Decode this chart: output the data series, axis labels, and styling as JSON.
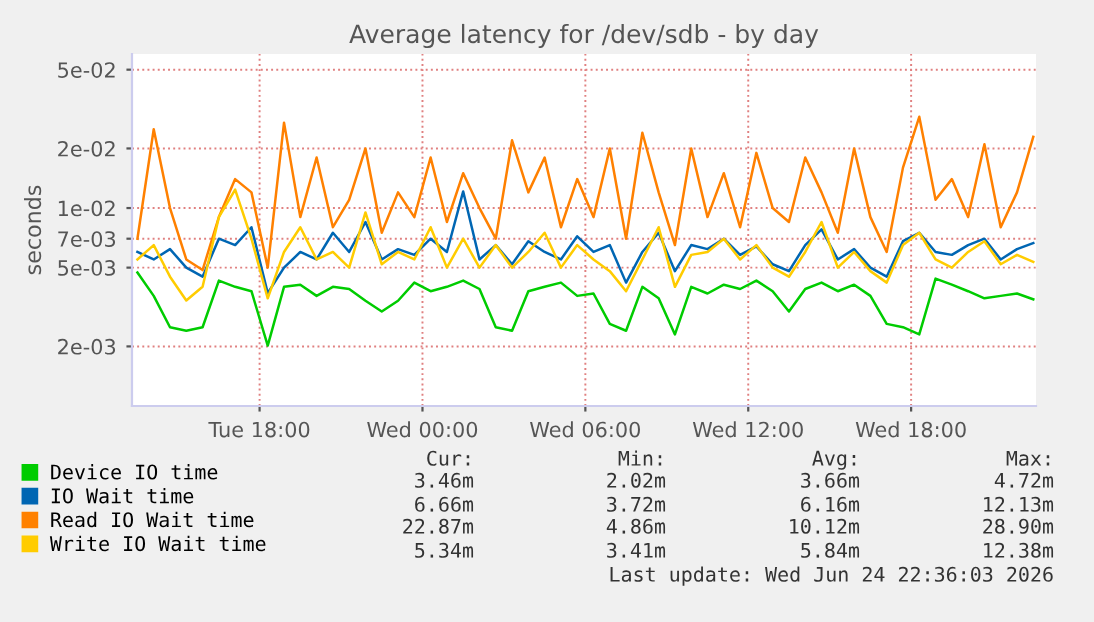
{
  "chart_data": {
    "type": "line",
    "title": "Average latency for /dev/sdb - by day",
    "ylabel": "seconds",
    "log": true,
    "grid": true,
    "legend": "bottom",
    "marker": "none",
    "line_style": "solid",
    "xlim": [
      "2026-06-23T13:18",
      "2026-06-24T22:36"
    ],
    "xticks": [
      {
        "value": "2026-06-23T18:00",
        "label": "Tue 18:00"
      },
      {
        "value": "2026-06-24T00:00",
        "label": "Wed 00:00"
      },
      {
        "value": "2026-06-24T06:00",
        "label": "Wed 06:00"
      },
      {
        "value": "2026-06-24T12:00",
        "label": "Wed 12:00"
      },
      {
        "value": "2026-06-24T18:00",
        "label": "Wed 18:00"
      }
    ],
    "ylim": [
      0.001,
      0.06
    ],
    "yticks": [
      {
        "value": 0.002,
        "label": "2e-03"
      },
      {
        "value": 0.005,
        "label": "5e-03"
      },
      {
        "value": 0.007,
        "label": "7e-03"
      },
      {
        "value": 0.01,
        "label": "1e-02"
      },
      {
        "value": 0.02,
        "label": "2e-02"
      },
      {
        "value": 0.05,
        "label": "5e-02"
      }
    ],
    "x": [
      "2026-06-23T13:30",
      "2026-06-23T14:06",
      "2026-06-23T14:42",
      "2026-06-23T15:18",
      "2026-06-23T15:54",
      "2026-06-23T16:30",
      "2026-06-23T17:06",
      "2026-06-23T17:42",
      "2026-06-23T18:18",
      "2026-06-23T18:54",
      "2026-06-23T19:30",
      "2026-06-23T20:06",
      "2026-06-23T20:42",
      "2026-06-23T21:18",
      "2026-06-23T21:54",
      "2026-06-23T22:30",
      "2026-06-23T23:06",
      "2026-06-23T23:42",
      "2026-06-24T00:18",
      "2026-06-24T00:54",
      "2026-06-24T01:30",
      "2026-06-24T02:06",
      "2026-06-24T02:42",
      "2026-06-24T03:18",
      "2026-06-24T03:54",
      "2026-06-24T04:30",
      "2026-06-24T05:06",
      "2026-06-24T05:42",
      "2026-06-24T06:18",
      "2026-06-24T06:54",
      "2026-06-24T07:30",
      "2026-06-24T08:06",
      "2026-06-24T08:42",
      "2026-06-24T09:18",
      "2026-06-24T09:54",
      "2026-06-24T10:30",
      "2026-06-24T11:06",
      "2026-06-24T11:42",
      "2026-06-24T12:18",
      "2026-06-24T12:54",
      "2026-06-24T13:30",
      "2026-06-24T14:06",
      "2026-06-24T14:42",
      "2026-06-24T15:18",
      "2026-06-24T15:54",
      "2026-06-24T16:30",
      "2026-06-24T17:06",
      "2026-06-24T17:42",
      "2026-06-24T18:18",
      "2026-06-24T18:54",
      "2026-06-24T19:30",
      "2026-06-24T20:06",
      "2026-06-24T20:42",
      "2026-06-24T21:18",
      "2026-06-24T21:54",
      "2026-06-24T22:30"
    ],
    "series": [
      {
        "name": "Device IO time",
        "color": "#00cc00",
        "values": [
          0.00472,
          0.0036,
          0.0025,
          0.0024,
          0.0025,
          0.0043,
          0.004,
          0.0038,
          0.00202,
          0.004,
          0.0041,
          0.0036,
          0.004,
          0.0039,
          0.0034,
          0.003,
          0.0034,
          0.0042,
          0.0038,
          0.004,
          0.0043,
          0.0039,
          0.0025,
          0.0024,
          0.0038,
          0.004,
          0.0042,
          0.0036,
          0.0037,
          0.0026,
          0.0024,
          0.004,
          0.0035,
          0.0023,
          0.004,
          0.0037,
          0.0041,
          0.0039,
          0.0043,
          0.0038,
          0.003,
          0.0039,
          0.0042,
          0.0038,
          0.0041,
          0.0036,
          0.0026,
          0.0025,
          0.0023,
          0.0044,
          0.0041,
          0.0038,
          0.0035,
          0.0036,
          0.0037,
          0.00346
        ]
      },
      {
        "name": "IO Wait time",
        "color": "#0066b3",
        "values": [
          0.006,
          0.0055,
          0.0062,
          0.005,
          0.0045,
          0.007,
          0.0065,
          0.008,
          0.00372,
          0.005,
          0.006,
          0.0055,
          0.0075,
          0.006,
          0.0085,
          0.0055,
          0.0062,
          0.0058,
          0.007,
          0.006,
          0.01213,
          0.0055,
          0.0065,
          0.0052,
          0.0068,
          0.006,
          0.0055,
          0.0072,
          0.006,
          0.0065,
          0.0042,
          0.006,
          0.0075,
          0.0048,
          0.0065,
          0.0062,
          0.007,
          0.0058,
          0.0064,
          0.0052,
          0.0048,
          0.0065,
          0.0078,
          0.0055,
          0.0062,
          0.005,
          0.0045,
          0.0068,
          0.0075,
          0.006,
          0.0058,
          0.0065,
          0.007,
          0.0055,
          0.0062,
          0.00666
        ]
      },
      {
        "name": "Read IO Wait time",
        "color": "#ff8000",
        "values": [
          0.007,
          0.025,
          0.01,
          0.0055,
          0.00486,
          0.009,
          0.014,
          0.012,
          0.005,
          0.027,
          0.009,
          0.018,
          0.008,
          0.011,
          0.02,
          0.0075,
          0.012,
          0.009,
          0.018,
          0.0085,
          0.015,
          0.01,
          0.007,
          0.022,
          0.012,
          0.018,
          0.008,
          0.014,
          0.009,
          0.02,
          0.007,
          0.024,
          0.012,
          0.0065,
          0.02,
          0.009,
          0.015,
          0.008,
          0.019,
          0.01,
          0.0085,
          0.018,
          0.012,
          0.0075,
          0.02,
          0.009,
          0.006,
          0.016,
          0.0289,
          0.011,
          0.014,
          0.009,
          0.021,
          0.008,
          0.012,
          0.02287
        ]
      },
      {
        "name": "Write IO Wait time",
        "color": "#ffcc00",
        "values": [
          0.0055,
          0.0065,
          0.0045,
          0.00341,
          0.004,
          0.009,
          0.01238,
          0.007,
          0.0035,
          0.006,
          0.008,
          0.0055,
          0.006,
          0.005,
          0.0095,
          0.0052,
          0.006,
          0.0055,
          0.008,
          0.005,
          0.007,
          0.005,
          0.0065,
          0.005,
          0.006,
          0.0075,
          0.005,
          0.0065,
          0.0055,
          0.0048,
          0.0038,
          0.0055,
          0.008,
          0.004,
          0.0058,
          0.006,
          0.007,
          0.0055,
          0.0065,
          0.005,
          0.0045,
          0.006,
          0.0085,
          0.005,
          0.006,
          0.0048,
          0.0042,
          0.0065,
          0.0075,
          0.0055,
          0.005,
          0.006,
          0.0068,
          0.0052,
          0.0058,
          0.00534
        ]
      }
    ],
    "annotations": [
      "Cur:",
      "Min:",
      "Avg:",
      "Max:",
      "3.46m",
      "2.02m",
      "3.66m",
      "4.72m",
      "6.66m",
      "3.72m",
      "6.16m",
      "12.13m",
      "22.87m",
      "4.86m",
      "10.12m",
      "28.90m",
      "5.34m",
      "3.41m",
      "5.84m",
      "12.38m",
      "Last update: Wed Jun 24 22:36:03 2026"
    ]
  }
}
